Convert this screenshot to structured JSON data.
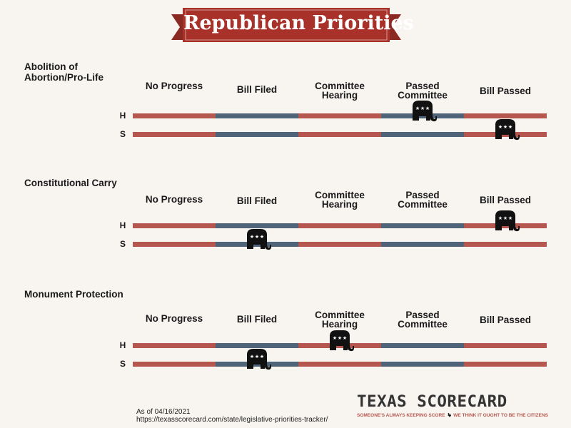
{
  "title": "Republican Priorities",
  "stages": [
    "No Progress",
    "Bill Filed",
    "Committee\nHearing",
    "Passed\nCommittee",
    "Bill Passed"
  ],
  "chambers": [
    "H",
    "S"
  ],
  "icons": {
    "marker": "republican-elephant-icon",
    "state": "texas-icon"
  },
  "colors": {
    "banner": "#a8312a",
    "track_red": "#b5574e",
    "track_blue": "#4f6478",
    "marker": "#111111",
    "background": "#f8f5f1"
  },
  "sections": [
    {
      "title": "Abolition of\nAbortion/Pro-Life",
      "house": {
        "label": "H",
        "status_index": 3
      },
      "senate": {
        "label": "S",
        "status_index": 4
      }
    },
    {
      "title": "Constitutional Carry",
      "house": {
        "label": "H",
        "status_index": 4
      },
      "senate": {
        "label": "S",
        "status_index": 1
      }
    },
    {
      "title": "Monument Protection",
      "house": {
        "label": "H",
        "status_index": 2
      },
      "senate": {
        "label": "S",
        "status_index": 1
      }
    }
  ],
  "footer": {
    "as_of": "As of 04/16/2021",
    "url": "https://texasscorecard.com/state/legislative-priorities-tracker/"
  },
  "brand": {
    "name": "TEXAS SCORECARD",
    "tagline_left": "SOMEONE'S ALWAYS KEEPING SCORE",
    "tagline_right": "WE THINK IT OUGHT TO BE THE CITIZENS"
  }
}
